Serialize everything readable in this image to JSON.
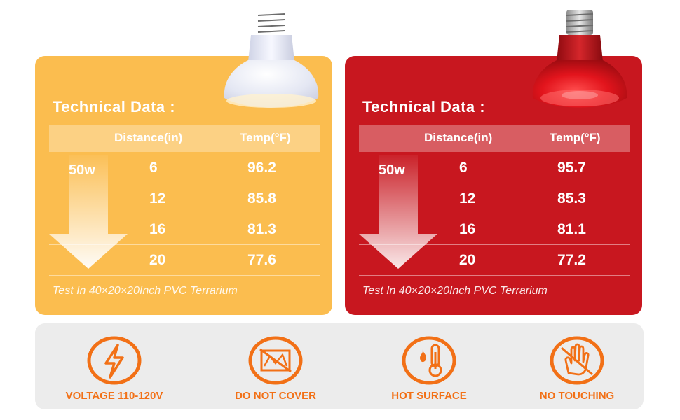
{
  "panels": [
    {
      "title": "Technical Data :",
      "header": {
        "distance": "Distance(in)",
        "temp": "Temp(°F)"
      },
      "wattage": "50w",
      "rows": [
        {
          "distance": "6",
          "temp": "96.2"
        },
        {
          "distance": "12",
          "temp": "85.8"
        },
        {
          "distance": "16",
          "temp": "81.3"
        },
        {
          "distance": "20",
          "temp": "77.6"
        }
      ],
      "note": "Test In 40×20×20Inch PVC Terrarium",
      "color": "#fbbd4f"
    },
    {
      "title": "Technical Data :",
      "header": {
        "distance": "Distance(in)",
        "temp": "Temp(°F)"
      },
      "wattage": "50w",
      "rows": [
        {
          "distance": "6",
          "temp": "95.7"
        },
        {
          "distance": "12",
          "temp": "85.3"
        },
        {
          "distance": "16",
          "temp": "81.1"
        },
        {
          "distance": "20",
          "temp": "77.2"
        }
      ],
      "note": "Test In 40×20×20Inch PVC Terrarium",
      "color": "#c8171f"
    }
  ],
  "warnings": [
    {
      "label": "VOLTAGE 110-120V",
      "icon": "lightning-icon"
    },
    {
      "label": "DO NOT COVER",
      "icon": "no-cover-icon"
    },
    {
      "label": "HOT SURFACE",
      "icon": "thermometer-flame-icon"
    },
    {
      "label": "NO TOUCHING",
      "icon": "hand-icon"
    }
  ],
  "accent_color": "#f27016"
}
